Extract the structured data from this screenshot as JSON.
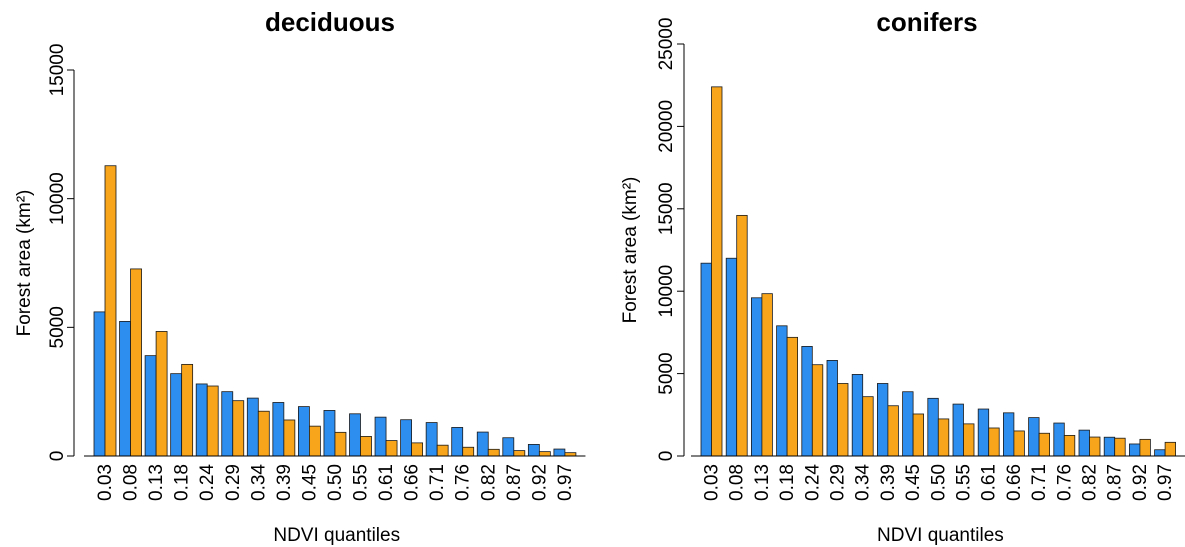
{
  "colors": {
    "series_a": "#2E8EF0",
    "series_b": "#F8A51B"
  },
  "chart_data": [
    {
      "type": "bar",
      "title": "deciduous",
      "xlabel": "NDVI quantiles",
      "ylabel": "Forest area (km²)",
      "ylim": [
        0,
        15000
      ],
      "yticks": [
        0,
        5000,
        10000,
        15000
      ],
      "categories": [
        "0.03",
        "0.08",
        "0.13",
        "0.18",
        "0.24",
        "0.29",
        "0.34",
        "0.39",
        "0.45",
        "0.50",
        "0.55",
        "0.61",
        "0.66",
        "0.71",
        "0.76",
        "0.82",
        "0.87",
        "0.92",
        "0.97"
      ],
      "series": [
        {
          "color": "#2E8EF0",
          "values": [
            5600,
            5230,
            3900,
            3200,
            2800,
            2500,
            2250,
            2080,
            1920,
            1770,
            1640,
            1510,
            1410,
            1300,
            1110,
            930,
            710,
            450,
            270
          ]
        },
        {
          "color": "#F8A51B",
          "values": [
            11280,
            7270,
            4840,
            3560,
            2720,
            2150,
            1740,
            1400,
            1160,
            920,
            760,
            600,
            510,
            420,
            340,
            260,
            210,
            170,
            130
          ]
        }
      ]
    },
    {
      "type": "bar",
      "title": "conifers",
      "xlabel": "NDVI quantiles",
      "ylabel": "Forest area (km²)",
      "ylim": [
        0,
        25000
      ],
      "yticks": [
        0,
        5000,
        10000,
        15000,
        20000,
        25000
      ],
      "categories": [
        "0.03",
        "0.08",
        "0.13",
        "0.18",
        "0.24",
        "0.29",
        "0.34",
        "0.39",
        "0.45",
        "0.50",
        "0.55",
        "0.61",
        "0.66",
        "0.71",
        "0.76",
        "0.82",
        "0.87",
        "0.92",
        "0.97"
      ],
      "series": [
        {
          "color": "#2E8EF0",
          "values": [
            11700,
            12000,
            9600,
            7900,
            6650,
            5800,
            4950,
            4400,
            3900,
            3500,
            3150,
            2850,
            2620,
            2330,
            2000,
            1570,
            1140,
            730,
            380
          ]
        },
        {
          "color": "#F8A51B",
          "values": [
            22400,
            14600,
            9850,
            7200,
            5540,
            4400,
            3600,
            3050,
            2550,
            2250,
            1950,
            1700,
            1520,
            1380,
            1250,
            1150,
            1080,
            1010,
            830
          ]
        }
      ]
    }
  ]
}
